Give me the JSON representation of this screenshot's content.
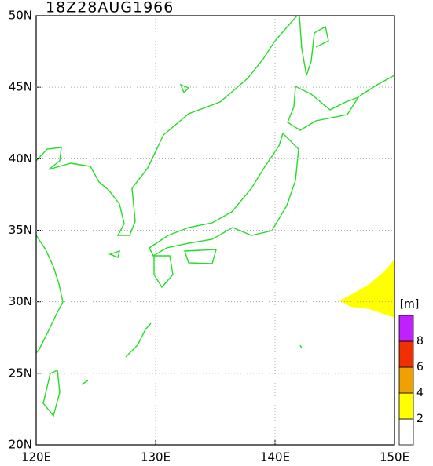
{
  "title": "18Z28AUG1966",
  "map": {
    "xlim": [
      120,
      150
    ],
    "ylim": [
      20,
      50
    ],
    "xticks": [
      {
        "value": 120,
        "label": "120E"
      },
      {
        "value": 130,
        "label": "130E"
      },
      {
        "value": 140,
        "label": "140E"
      },
      {
        "value": 150,
        "label": "150E"
      }
    ],
    "yticks": [
      {
        "value": 20,
        "label": "20N"
      },
      {
        "value": 25,
        "label": "25N"
      },
      {
        "value": 30,
        "label": "30N"
      },
      {
        "value": 35,
        "label": "35N"
      },
      {
        "value": 40,
        "label": "40N"
      },
      {
        "value": 45,
        "label": "45N"
      },
      {
        "value": 50,
        "label": "50N"
      }
    ],
    "grid": true
  },
  "colorbar": {
    "unit": "[m]",
    "levels": [
      2,
      4,
      6,
      8
    ],
    "colors": [
      "#ffffff",
      "#ffff00",
      "#f0a000",
      "#f03000",
      "#c020ff"
    ]
  }
}
